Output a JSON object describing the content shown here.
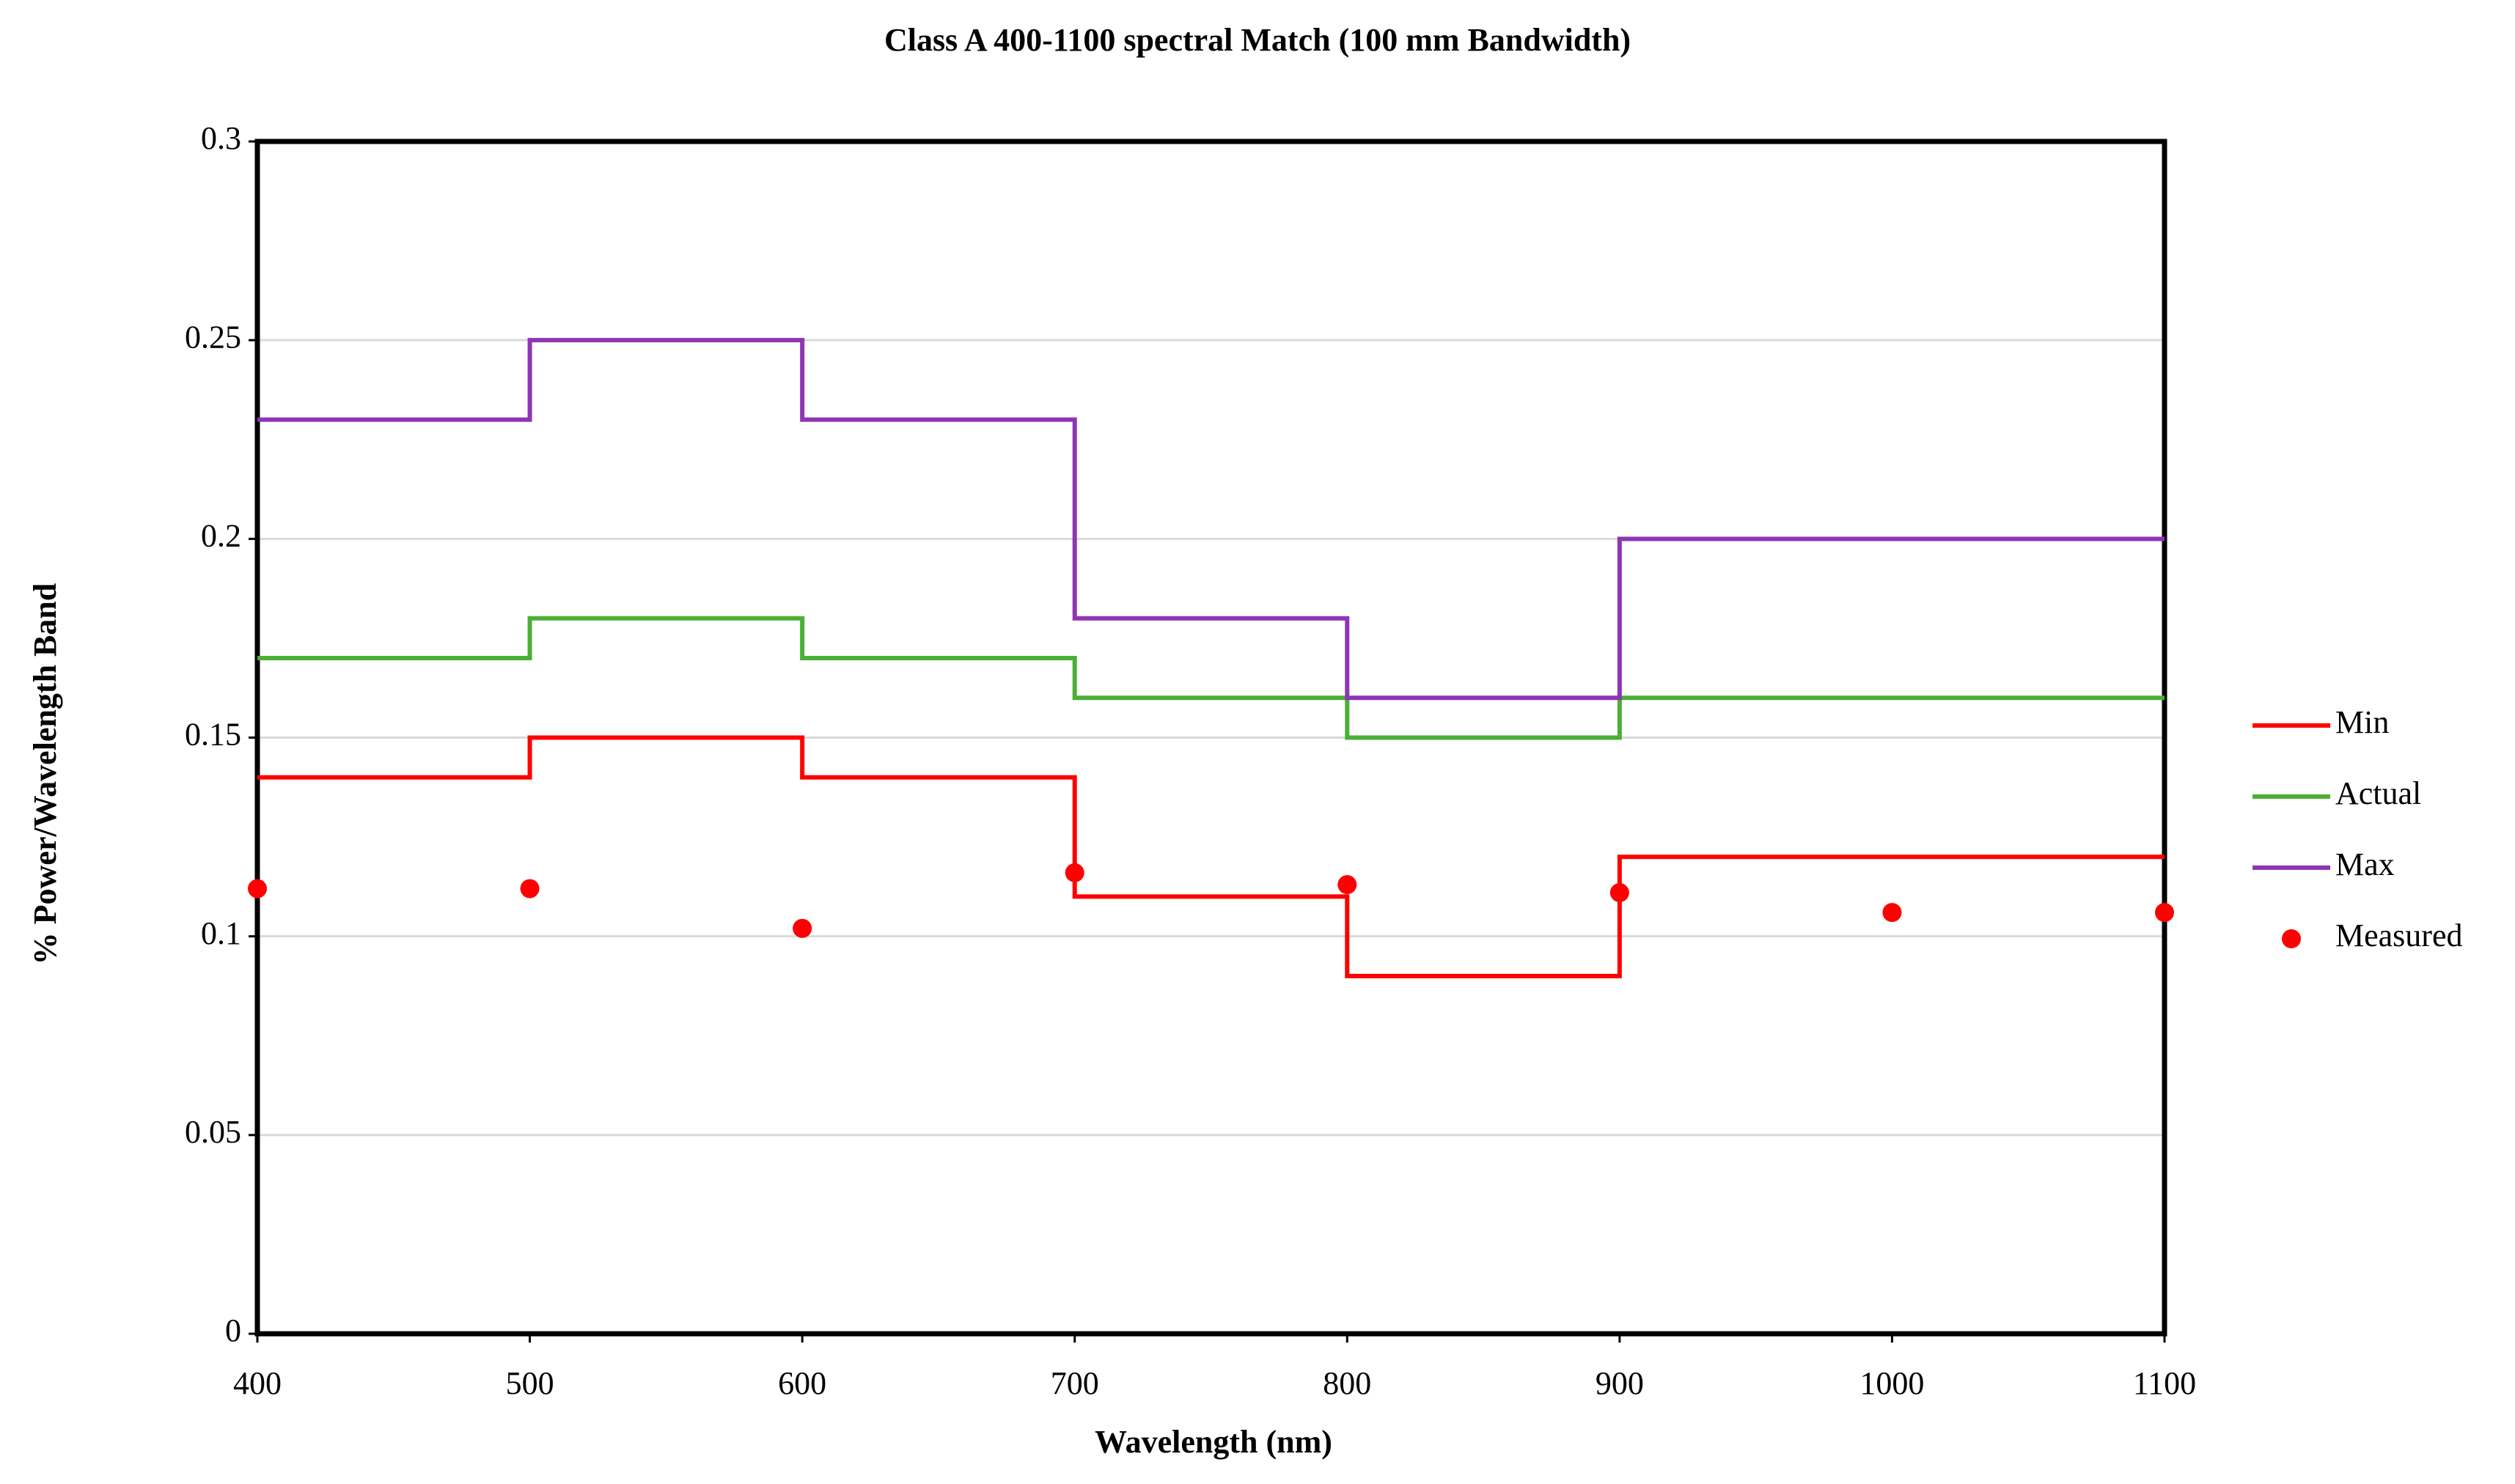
{
  "chart_data": {
    "type": "step",
    "title": "Class A 400-1100 spectral Match (100 mm Bandwidth)",
    "x_label": "Wavelength (nm)",
    "y_label": "% Power/Wavelength Band",
    "x": [
      400,
      500,
      600,
      700,
      800,
      900,
      1000,
      1100
    ],
    "series": [
      {
        "name": "Min",
        "color": "#ff0000",
        "type": "step",
        "values": [
          0.14,
          0.15,
          0.14,
          0.11,
          0.09,
          0.12,
          0.12,
          0.12
        ]
      },
      {
        "name": "Actual",
        "color": "#4caf35",
        "type": "step",
        "values": [
          0.17,
          0.18,
          0.17,
          0.16,
          0.15,
          0.16,
          0.16,
          0.16
        ]
      },
      {
        "name": "Max",
        "color": "#8e35b5",
        "type": "step",
        "values": [
          0.23,
          0.25,
          0.23,
          0.18,
          0.16,
          0.2,
          0.2,
          0.2
        ]
      },
      {
        "name": "Measured",
        "color": "#ff0000",
        "type": "scatter",
        "values": [
          0.112,
          0.112,
          0.102,
          0.116,
          0.113,
          0.111,
          0.106,
          0.106
        ]
      }
    ],
    "xlim": [
      400,
      1100
    ],
    "xticks": [
      400,
      500,
      600,
      700,
      800,
      900,
      1000,
      1100
    ],
    "ylim": [
      0,
      0.3
    ],
    "yticks": [
      0,
      0.05,
      0.1,
      0.15,
      0.2,
      0.25,
      0.3
    ],
    "grid": true,
    "legend": "right"
  }
}
